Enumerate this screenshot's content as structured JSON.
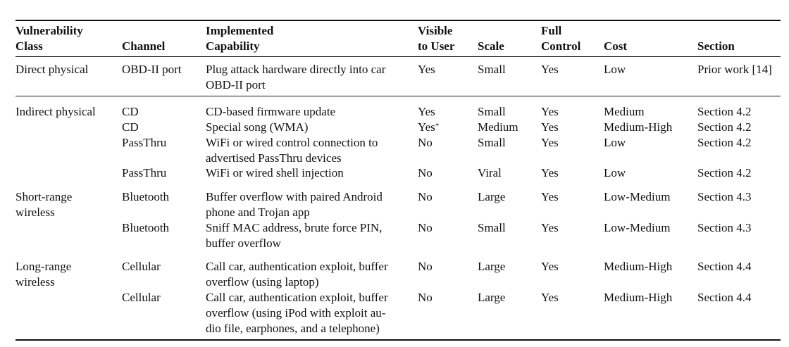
{
  "headers": {
    "vulnerability_class": [
      "Vulnerability",
      "Class"
    ],
    "channel": "Channel",
    "capability": [
      "Implemented",
      "Capability"
    ],
    "visible": [
      "Visible",
      "to User"
    ],
    "scale": "Scale",
    "full_control": [
      "Full",
      "Control"
    ],
    "cost": "Cost",
    "section": "Section"
  },
  "groups": [
    {
      "class": [
        "Direct physical"
      ],
      "rows": [
        {
          "channel": "OBD-II port",
          "capability": [
            "Plug attack hardware directly into car",
            "OBD-II port"
          ],
          "visible": "Yes",
          "visible_mark": "",
          "scale": "Small",
          "full_control": "Yes",
          "cost": "Low",
          "section": "Prior work [14]"
        }
      ]
    },
    {
      "class": [
        "Indirect physical"
      ],
      "rows": [
        {
          "channel": "CD",
          "capability": [
            "CD-based firmware update"
          ],
          "visible": "Yes",
          "visible_mark": "",
          "scale": "Small",
          "full_control": "Yes",
          "cost": "Medium",
          "section": "Section 4.2"
        },
        {
          "channel": "CD",
          "capability": [
            "Special song (WMA)"
          ],
          "visible": "Yes",
          "visible_mark": "*",
          "scale": "Medium",
          "full_control": "Yes",
          "cost": "Medium-High",
          "section": "Section 4.2"
        },
        {
          "channel": "PassThru",
          "capability": [
            "WiFi or wired control connection to",
            "advertised PassThru devices"
          ],
          "visible": "No",
          "visible_mark": "",
          "scale": "Small",
          "full_control": "Yes",
          "cost": "Low",
          "section": "Section 4.2"
        },
        {
          "channel": "PassThru",
          "capability": [
            "WiFi or wired shell injection"
          ],
          "visible": "No",
          "visible_mark": "",
          "scale": "Viral",
          "full_control": "Yes",
          "cost": "Low",
          "section": "Section 4.2"
        }
      ]
    },
    {
      "class": [
        "Short-range",
        "wireless"
      ],
      "rows": [
        {
          "channel": "Bluetooth",
          "capability": [
            "Buffer overflow with paired Android",
            "phone and Trojan app"
          ],
          "visible": "No",
          "visible_mark": "",
          "scale": "Large",
          "full_control": "Yes",
          "cost": "Low-Medium",
          "section": "Section 4.3"
        },
        {
          "channel": "Bluetooth",
          "capability": [
            "Sniff MAC address, brute force PIN,",
            "buffer overflow"
          ],
          "visible": "No",
          "visible_mark": "",
          "scale": "Small",
          "full_control": "Yes",
          "cost": "Low-Medium",
          "section": "Section 4.3"
        }
      ]
    },
    {
      "class": [
        "Long-range",
        "wireless"
      ],
      "rows": [
        {
          "channel": "Cellular",
          "capability": [
            "Call car, authentication exploit, buffer",
            "overflow (using laptop)"
          ],
          "visible": "No",
          "visible_mark": "",
          "scale": "Large",
          "full_control": "Yes",
          "cost": "Medium-High",
          "section": "Section 4.4"
        },
        {
          "channel": "Cellular",
          "capability": [
            "Call car, authentication exploit, buffer",
            "overflow (using iPod with exploit au-",
            "dio file, earphones, and a telephone)"
          ],
          "visible": "No",
          "visible_mark": "",
          "scale": "Large",
          "full_control": "Yes",
          "cost": "Medium-High",
          "section": "Section 4.4"
        }
      ]
    }
  ]
}
